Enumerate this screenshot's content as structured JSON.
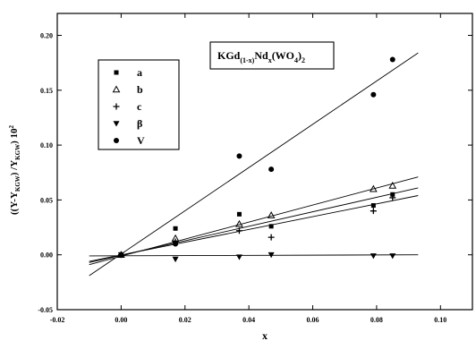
{
  "chart_data": {
    "type": "scatter",
    "title": "",
    "xlabel": "x",
    "ylabel": "((Y-Y_KGW) / Y_KGW ) 10^2",
    "ylabel_parts": {
      "pre": "((Y-Y",
      "sub1": "KGW",
      "mid": ") /Y",
      "sub2": "KGW",
      "post": ") 10",
      "sup": "2"
    },
    "annotation": {
      "parts": [
        {
          "t": "KGd",
          "s": "n"
        },
        {
          "t": "(1-x)",
          "s": "sub"
        },
        {
          "t": "Nd",
          "s": "n"
        },
        {
          "t": "x",
          "s": "sub"
        },
        {
          "t": "(WO",
          "s": "n"
        },
        {
          "t": "4",
          "s": "sub"
        },
        {
          "t": ")",
          "s": "n"
        },
        {
          "t": "2",
          "s": "sub"
        }
      ]
    },
    "xlim": [
      -0.02,
      0.11
    ],
    "ylim": [
      -0.05,
      0.22
    ],
    "xticks": [
      -0.02,
      0.0,
      0.02,
      0.04,
      0.06,
      0.08,
      0.1
    ],
    "xtick_labels": [
      "-0.02",
      "0.00",
      "0.02",
      "0.04",
      "0.06",
      "0.08",
      "0.10"
    ],
    "yticks": [
      -0.05,
      0.0,
      0.05,
      0.1,
      0.15,
      0.2
    ],
    "ytick_labels": [
      "-0.05",
      "0.00",
      "0.05",
      "0.10",
      "0.15",
      "0.20"
    ],
    "grid": false,
    "legend_position": "upper-left",
    "series": [
      {
        "name": "a",
        "marker": "square",
        "points": [
          [
            0.0,
            0.0
          ],
          [
            0.017,
            0.024
          ],
          [
            0.037,
            0.037
          ],
          [
            0.047,
            0.026
          ],
          [
            0.079,
            0.045
          ],
          [
            0.085,
            0.055
          ]
        ],
        "fit": [
          [
            -0.01,
            -0.007
          ],
          [
            0.093,
            0.061
          ]
        ]
      },
      {
        "name": "b",
        "marker": "triangle-up",
        "points": [
          [
            0.0,
            0.0
          ],
          [
            0.017,
            0.015
          ],
          [
            0.037,
            0.028
          ],
          [
            0.047,
            0.036
          ],
          [
            0.079,
            0.06
          ],
          [
            0.085,
            0.063
          ]
        ],
        "fit": [
          [
            -0.01,
            -0.009
          ],
          [
            0.093,
            0.071
          ]
        ]
      },
      {
        "name": "c",
        "marker": "plus",
        "points": [
          [
            0.0,
            0.0
          ],
          [
            0.017,
            0.012
          ],
          [
            0.037,
            0.022
          ],
          [
            0.047,
            0.016
          ],
          [
            0.079,
            0.04
          ],
          [
            0.085,
            0.052
          ]
        ],
        "fit": [
          [
            -0.01,
            -0.006
          ],
          [
            0.093,
            0.054
          ]
        ]
      },
      {
        "name": "β",
        "marker": "triangle-down",
        "points": [
          [
            0.0,
            0.0
          ],
          [
            0.017,
            -0.004
          ],
          [
            0.037,
            -0.002
          ],
          [
            0.047,
            0.0
          ],
          [
            0.079,
            -0.001
          ],
          [
            0.085,
            -0.001
          ]
        ],
        "fit": [
          [
            -0.01,
            -0.001
          ],
          [
            0.093,
            0.0
          ]
        ]
      },
      {
        "name": "V",
        "marker": "circle",
        "points": [
          [
            0.0,
            0.0
          ],
          [
            0.017,
            0.01
          ],
          [
            0.037,
            0.09
          ],
          [
            0.047,
            0.078
          ],
          [
            0.079,
            0.146
          ],
          [
            0.085,
            0.178
          ]
        ],
        "fit": [
          [
            -0.01,
            -0.019
          ],
          [
            0.093,
            0.184
          ]
        ]
      }
    ]
  }
}
